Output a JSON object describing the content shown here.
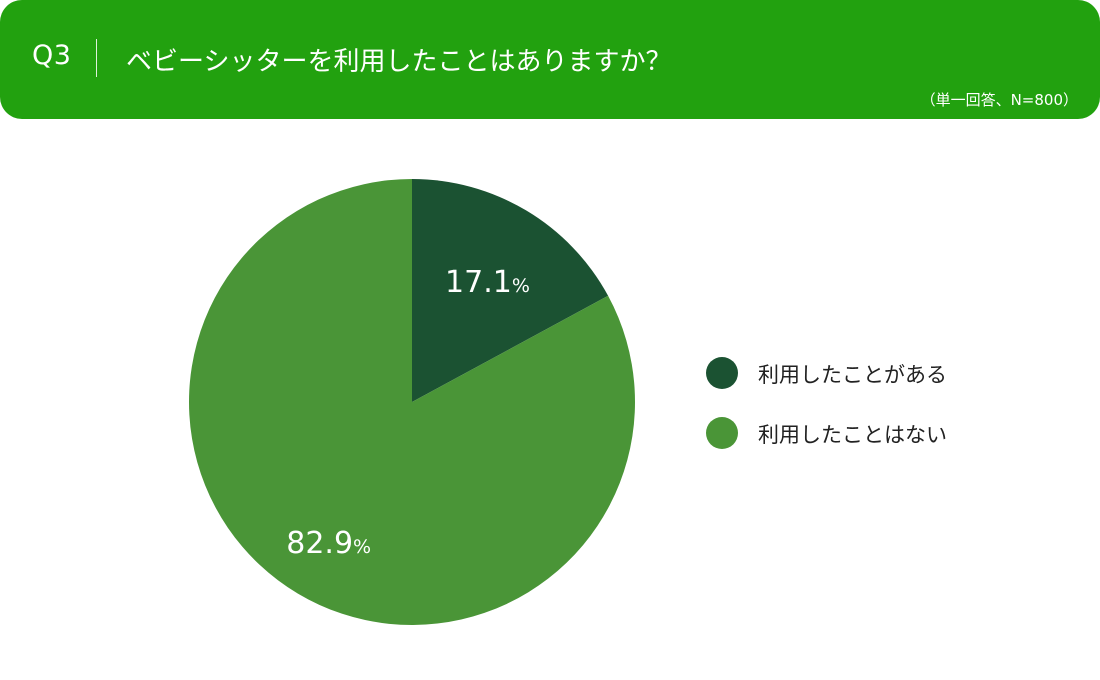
{
  "header": {
    "qnum": "Q3",
    "question": "ベビーシッターを利用したことはありますか？",
    "note": "（単一回答、N=800）"
  },
  "colors": {
    "header_bg": "#22a10f",
    "used": "#1b5232",
    "not_used": "#4a9537"
  },
  "chart_data": {
    "type": "pie",
    "title": "ベビーシッターを利用したことはありますか？",
    "categories": [
      "利用したことがある",
      "利用したことはない"
    ],
    "values": [
      17.1,
      82.9
    ],
    "value_labels": [
      {
        "number": "17.1",
        "unit": "%"
      },
      {
        "number": "82.9",
        "unit": "%"
      }
    ],
    "start_angle": "12 o'clock",
    "direction": "clockwise",
    "legend_placement": "right"
  },
  "legend": [
    {
      "label": "利用したことがある",
      "color": "#1b5232"
    },
    {
      "label": "利用したことはない",
      "color": "#4a9537"
    }
  ]
}
